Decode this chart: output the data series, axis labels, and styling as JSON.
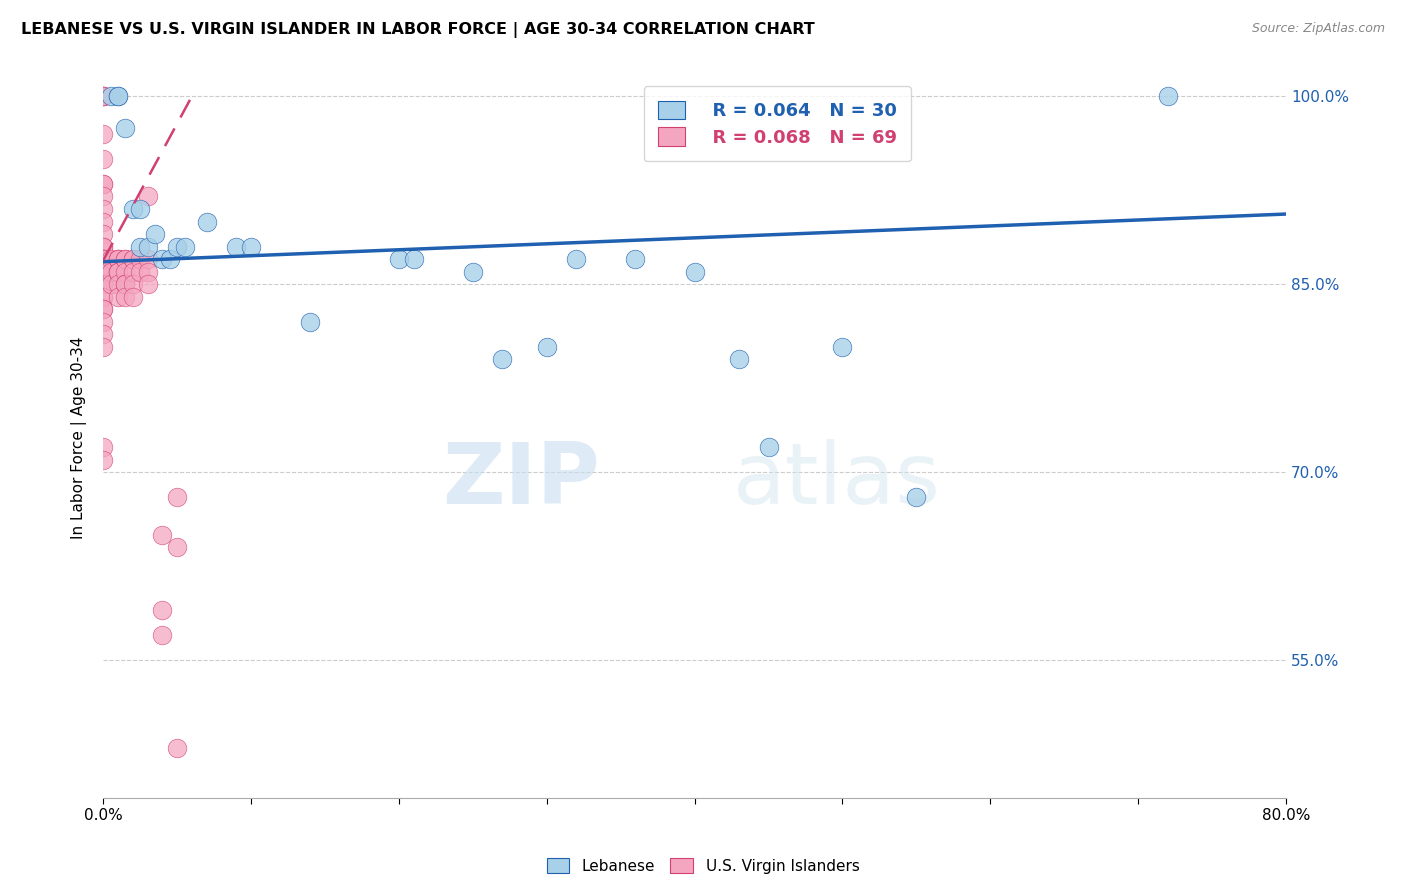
{
  "title": "LEBANESE VS U.S. VIRGIN ISLANDER IN LABOR FORCE | AGE 30-34 CORRELATION CHART",
  "source": "Source: ZipAtlas.com",
  "ylabel": "In Labor Force | Age 30-34",
  "xlim": [
    0.0,
    0.8
  ],
  "ylim": [
    0.44,
    1.015
  ],
  "xticks": [
    0.0,
    0.1,
    0.2,
    0.3,
    0.4,
    0.5,
    0.6,
    0.7,
    0.8
  ],
  "xtick_labels": [
    "0.0%",
    "",
    "",
    "",
    "",
    "",
    "",
    "",
    "80.0%"
  ],
  "ytick_labels_right": [
    "100.0%",
    "85.0%",
    "70.0%",
    "55.0%"
  ],
  "ytick_values_right": [
    1.0,
    0.85,
    0.7,
    0.55
  ],
  "legend_blue_r": "R = 0.064",
  "legend_blue_n": "N = 30",
  "legend_pink_r": "R = 0.068",
  "legend_pink_n": "N = 69",
  "blue_color": "#a8d0e8",
  "pink_color": "#f4a6c0",
  "blue_line_color": "#2060b0",
  "pink_line_color": "#d04070",
  "watermark_zip": "ZIP",
  "watermark_atlas": "atlas",
  "blue_x": [
    0.005,
    0.01,
    0.01,
    0.015,
    0.02,
    0.025,
    0.025,
    0.03,
    0.035,
    0.04,
    0.045,
    0.05,
    0.055,
    0.07,
    0.09,
    0.1,
    0.14,
    0.2,
    0.21,
    0.25,
    0.27,
    0.3,
    0.32,
    0.36,
    0.4,
    0.43,
    0.45,
    0.5,
    0.55,
    0.72
  ],
  "blue_y": [
    1.0,
    1.0,
    1.0,
    0.975,
    0.91,
    0.91,
    0.88,
    0.88,
    0.89,
    0.87,
    0.87,
    0.88,
    0.88,
    0.9,
    0.88,
    0.88,
    0.82,
    0.87,
    0.87,
    0.86,
    0.79,
    0.8,
    0.87,
    0.87,
    0.86,
    0.79,
    0.72,
    0.8,
    0.68,
    1.0
  ],
  "pink_x": [
    0.0,
    0.0,
    0.0,
    0.0,
    0.0,
    0.0,
    0.0,
    0.0,
    0.0,
    0.0,
    0.0,
    0.0,
    0.0,
    0.0,
    0.0,
    0.0,
    0.0,
    0.0,
    0.0,
    0.0,
    0.0,
    0.0,
    0.0,
    0.0,
    0.0,
    0.0,
    0.0,
    0.0,
    0.0,
    0.0,
    0.0,
    0.0,
    0.0,
    0.0,
    0.0,
    0.005,
    0.005,
    0.005,
    0.01,
    0.01,
    0.01,
    0.01,
    0.01,
    0.01,
    0.01,
    0.01,
    0.015,
    0.015,
    0.015,
    0.015,
    0.015,
    0.015,
    0.02,
    0.02,
    0.02,
    0.02,
    0.02,
    0.025,
    0.025,
    0.03,
    0.03,
    0.03,
    0.03,
    0.04,
    0.04,
    0.04,
    0.05,
    0.05,
    0.05
  ],
  "pink_y": [
    1.0,
    1.0,
    1.0,
    1.0,
    0.97,
    0.95,
    0.93,
    0.93,
    0.92,
    0.91,
    0.9,
    0.89,
    0.88,
    0.88,
    0.87,
    0.87,
    0.87,
    0.87,
    0.86,
    0.86,
    0.86,
    0.86,
    0.85,
    0.85,
    0.85,
    0.85,
    0.84,
    0.84,
    0.83,
    0.83,
    0.82,
    0.81,
    0.8,
    0.72,
    0.71,
    0.87,
    0.86,
    0.85,
    0.87,
    0.87,
    0.87,
    0.86,
    0.86,
    0.86,
    0.85,
    0.84,
    0.87,
    0.87,
    0.86,
    0.85,
    0.85,
    0.84,
    0.87,
    0.87,
    0.86,
    0.85,
    0.84,
    0.87,
    0.86,
    0.92,
    0.87,
    0.86,
    0.85,
    0.59,
    0.57,
    0.65,
    0.68,
    0.64,
    0.48
  ],
  "blue_line_x": [
    0.0,
    0.8
  ],
  "blue_line_y": [
    0.868,
    0.906
  ],
  "pink_line_x": [
    0.0,
    0.06
  ],
  "pink_line_y": [
    0.869,
    1.0
  ],
  "background_color": "#ffffff",
  "grid_color": "#cccccc"
}
